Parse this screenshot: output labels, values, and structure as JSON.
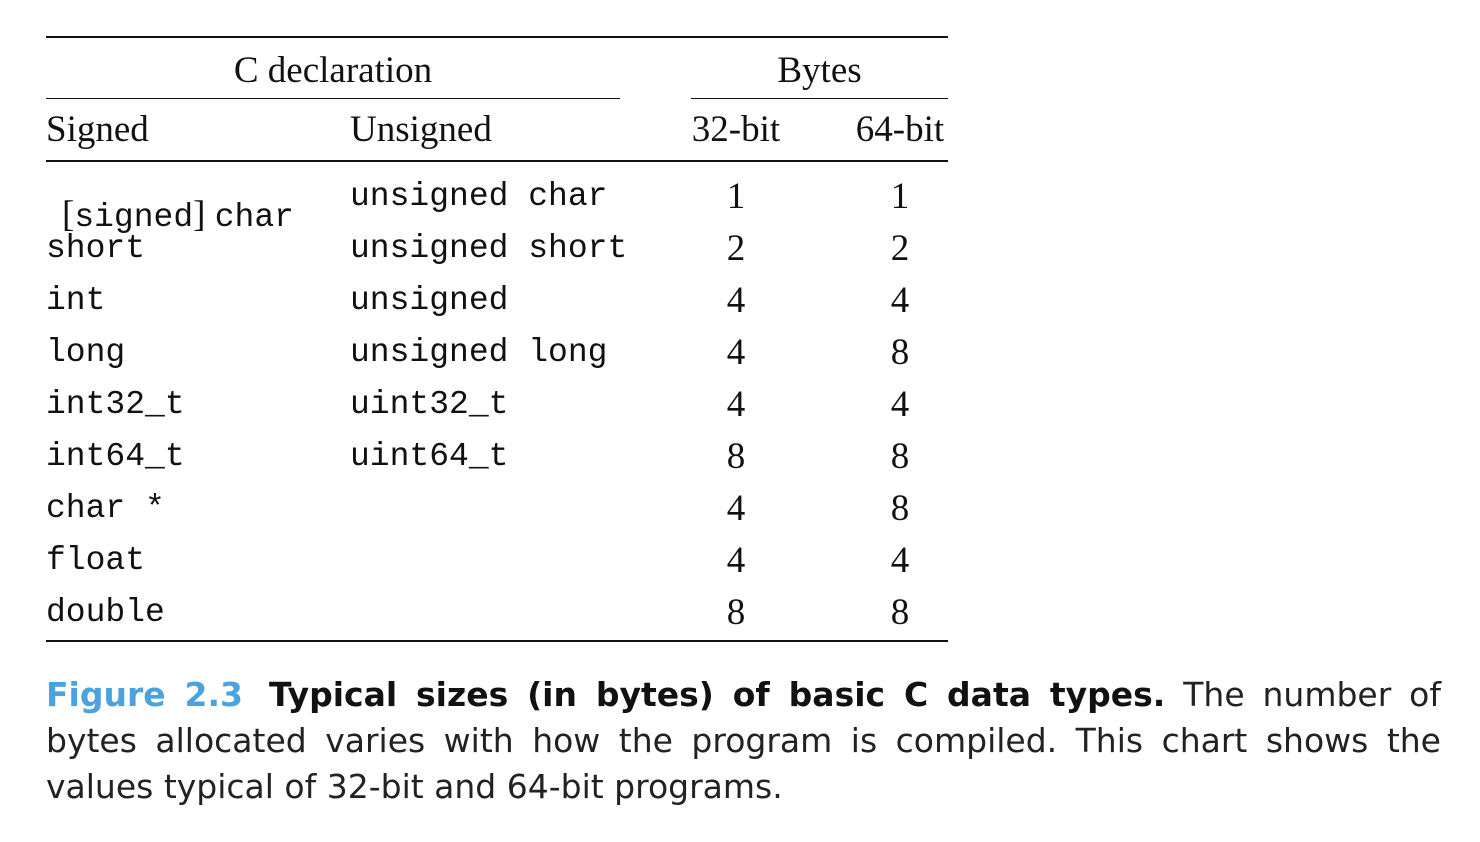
{
  "table": {
    "header_group_left": "C declaration",
    "header_group_right": "Bytes",
    "col_signed": "Signed",
    "col_unsigned": "Unsigned",
    "col_32": "32-bit",
    "col_64": "64-bit",
    "rows": [
      {
        "signed_prefix": "[",
        "signed_word": "signed",
        "signed_suffix": "] ",
        "signed": "char",
        "unsigned": "unsigned char",
        "b32": "1",
        "b64": "1"
      },
      {
        "signed": "short",
        "unsigned": "unsigned short",
        "b32": "2",
        "b64": "2"
      },
      {
        "signed": "int",
        "unsigned": "unsigned",
        "b32": "4",
        "b64": "4"
      },
      {
        "signed": "long",
        "unsigned": "unsigned long",
        "b32": "4",
        "b64": "8"
      },
      {
        "signed": "int32_t",
        "unsigned": "uint32_t",
        "b32": "4",
        "b64": "4"
      },
      {
        "signed": "int64_t",
        "unsigned": "uint64_t",
        "b32": "8",
        "b64": "8"
      },
      {
        "signed": "char *",
        "unsigned": "",
        "b32": "4",
        "b64": "8"
      },
      {
        "signed": "float",
        "unsigned": "",
        "b32": "4",
        "b64": "4"
      },
      {
        "signed": "double",
        "unsigned": "",
        "b32": "8",
        "b64": "8"
      }
    ]
  },
  "caption": {
    "label": "Figure 2.3",
    "title": "Typical sizes (in bytes) of basic C data types.",
    "text": "The number of bytes allocated varies with how the program is compiled. This chart shows the values typical of 32-bit and 64-bit programs."
  }
}
